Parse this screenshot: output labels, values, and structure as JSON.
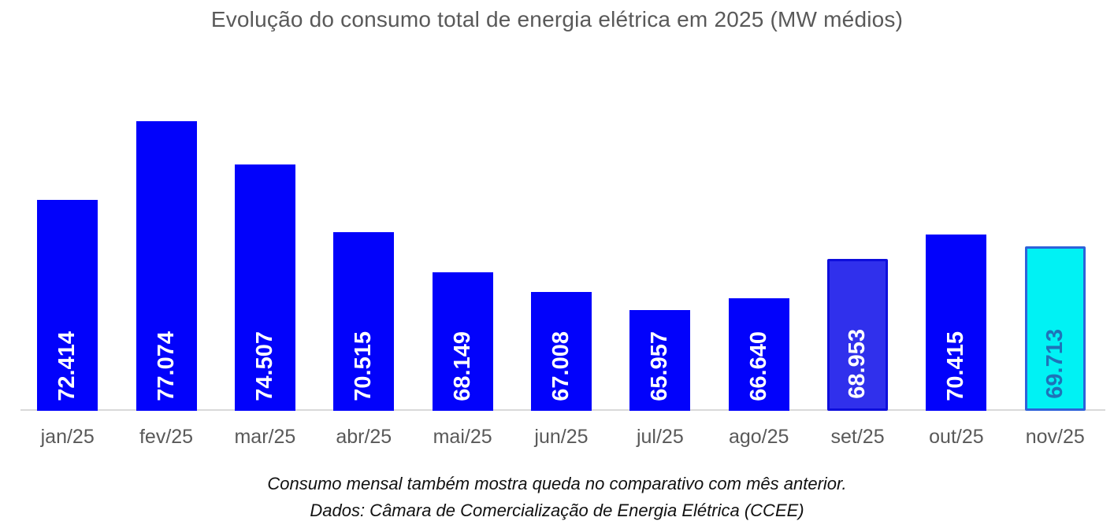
{
  "title": "Evolução do consumo total de energia elétrica em 2025 (MW médios)",
  "footer": {
    "line1": "Consumo mensal também mostra queda no comparativo com mês anterior.",
    "line2": "Dados: Câmara de Comercialização de Energia Elétrica (CCEE)"
  },
  "colors": {
    "bar_default": "#0202FB",
    "bar_set_fill": "#3030EC",
    "bar_set_border": "#0E0EDC",
    "bar_nov_fill": "#00F2F4",
    "bar_nov_border": "#2E62D9",
    "nov_label_text": "#1E73B8",
    "axis_line": "#D9D9D9",
    "text_gray": "#595959",
    "value_label_default": "#FFFFFF"
  },
  "chart_data": {
    "type": "bar",
    "title": "Evolução do consumo total de energia elétrica em 2025 (MW médios)",
    "xlabel": "",
    "ylabel": "",
    "ylim": [
      60000,
      80000
    ],
    "grid": false,
    "legend": "none",
    "categories": [
      "jan/25",
      "fev/25",
      "mar/25",
      "abr/25",
      "mai/25",
      "jun/25",
      "jul/25",
      "ago/25",
      "set/25",
      "out/25",
      "nov/25"
    ],
    "values": [
      72414,
      77074,
      74507,
      70515,
      68149,
      67008,
      65957,
      66640,
      68953,
      70415,
      69713
    ],
    "value_labels": [
      "72.414",
      "77.074",
      "74.507",
      "70.515",
      "68.149",
      "67.008",
      "65.957",
      "66.640",
      "68.953",
      "70.415",
      "69.713"
    ],
    "points": [
      {
        "category": "jan/25",
        "value": 72414,
        "value_label": "72.414",
        "fill": "#0202FB",
        "border": null,
        "label_color": "#FFFFFF"
      },
      {
        "category": "fev/25",
        "value": 77074,
        "value_label": "77.074",
        "fill": "#0202FB",
        "border": null,
        "label_color": "#FFFFFF"
      },
      {
        "category": "mar/25",
        "value": 74507,
        "value_label": "74.507",
        "fill": "#0202FB",
        "border": null,
        "label_color": "#FFFFFF"
      },
      {
        "category": "abr/25",
        "value": 70515,
        "value_label": "70.515",
        "fill": "#0202FB",
        "border": null,
        "label_color": "#FFFFFF"
      },
      {
        "category": "mai/25",
        "value": 68149,
        "value_label": "68.149",
        "fill": "#0202FB",
        "border": null,
        "label_color": "#FFFFFF"
      },
      {
        "category": "jun/25",
        "value": 67008,
        "value_label": "67.008",
        "fill": "#0202FB",
        "border": null,
        "label_color": "#FFFFFF"
      },
      {
        "category": "jul/25",
        "value": 65957,
        "value_label": "65.957",
        "fill": "#0202FB",
        "border": null,
        "label_color": "#FFFFFF"
      },
      {
        "category": "ago/25",
        "value": 66640,
        "value_label": "66.640",
        "fill": "#0202FB",
        "border": null,
        "label_color": "#FFFFFF"
      },
      {
        "category": "set/25",
        "value": 68953,
        "value_label": "68.953",
        "fill": "#3030EC",
        "border": "#0E0EDC",
        "label_color": "#FFFFFF"
      },
      {
        "category": "out/25",
        "value": 70415,
        "value_label": "70.415",
        "fill": "#0202FB",
        "border": null,
        "label_color": "#FFFFFF"
      },
      {
        "category": "nov/25",
        "value": 69713,
        "value_label": "69.713",
        "fill": "#00F2F4",
        "border": "#2E62D9",
        "label_color": "#1E73B8"
      }
    ]
  }
}
